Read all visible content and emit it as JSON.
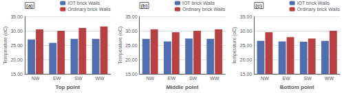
{
  "chart_data": [
    {
      "type": "bar",
      "title": "(a)",
      "xlabel": "Top point",
      "ylabel": "Temperature (oC)",
      "categories": [
        "NW",
        "EW",
        "SW",
        "WW"
      ],
      "series": [
        {
          "name": "IOT brick Walls",
          "color": "#4F6EAF",
          "values": [
            27.0,
            25.8,
            27.2,
            27.2
          ]
        },
        {
          "name": "Ordinary brick Walls",
          "color": "#B94040",
          "values": [
            30.5,
            30.0,
            31.0,
            31.5
          ]
        }
      ],
      "ylim": [
        15.0,
        35.0
      ],
      "yticks": [
        {
          "value": 15.0,
          "label": "15.00"
        },
        {
          "value": 20.0,
          "label": "20.00"
        },
        {
          "value": 25.0,
          "label": "25.00"
        },
        {
          "value": 30.0,
          "label": "30.00"
        },
        {
          "value": 35.0,
          "label": "35.00"
        }
      ],
      "grid": true,
      "legend": "upper right"
    },
    {
      "type": "bar",
      "title": "(b)",
      "xlabel": "Middle point",
      "ylabel": "Temperature (oC)",
      "categories": [
        "NW",
        "EW",
        "SW",
        "WW"
      ],
      "series": [
        {
          "name": "IOT brick Walls",
          "color": "#4F6EAF",
          "values": [
            27.2,
            26.3,
            27.3,
            27.2
          ]
        },
        {
          "name": "Ordinary brick Walls",
          "color": "#B94040",
          "values": [
            30.5,
            29.5,
            30.0,
            30.5
          ]
        }
      ],
      "ylim": [
        15.0,
        35.0
      ],
      "yticks": [
        {
          "value": 15.0,
          "label": "15.00"
        },
        {
          "value": 20.0,
          "label": "20.00"
        },
        {
          "value": 25.0,
          "label": "25.00"
        },
        {
          "value": 30.0,
          "label": "30.00"
        },
        {
          "value": 35.0,
          "label": "35.00"
        }
      ],
      "grid": true,
      "legend": "upper right"
    },
    {
      "type": "bar",
      "title": "(c)",
      "xlabel": "Bottom point",
      "ylabel": "temperature (oC)",
      "categories": [
        "NW",
        "EW",
        "SW",
        "WW"
      ],
      "series": [
        {
          "name": "IOT brick Walls",
          "color": "#4F6EAF",
          "values": [
            26.5,
            26.3,
            26.2,
            26.5
          ]
        },
        {
          "name": "Ordinary brick Walls",
          "color": "#B94040",
          "values": [
            29.5,
            27.8,
            27.3,
            30.0
          ]
        }
      ],
      "ylim": [
        15.0,
        35.0
      ],
      "yticks": [
        {
          "value": 15.0,
          "label": "15.00"
        },
        {
          "value": 20.0,
          "label": "20.00"
        },
        {
          "value": 25.0,
          "label": "25.00"
        },
        {
          "value": 30.0,
          "label": "30.00"
        },
        {
          "value": 35.0,
          "label": "35.00"
        }
      ],
      "grid": true,
      "legend": "upper right"
    }
  ]
}
